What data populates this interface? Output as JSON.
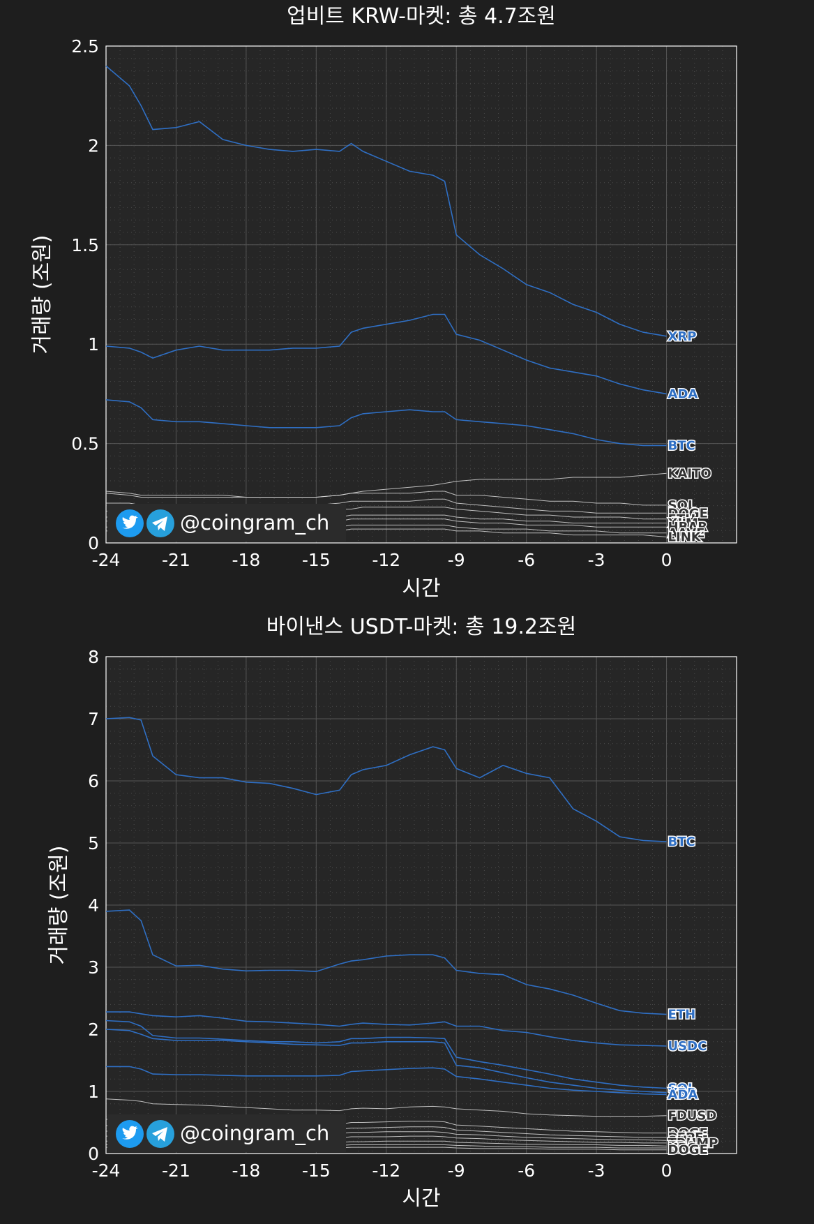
{
  "watermark": {
    "handle": "@coingram_ch",
    "icons": [
      "twitter-icon",
      "telegram-icon"
    ]
  },
  "colors": {
    "background": "#1e1e1e",
    "plot_bg": "#262626",
    "top_series": "#2f6fc4",
    "other_series": "#d9d9d9",
    "grid": "#555555",
    "text": "#ffffff",
    "watermark_bg": "#2b2b2b",
    "twitter": "#1d9bf0",
    "telegram": "#27a0dc"
  },
  "chart_data": [
    {
      "type": "line",
      "title": "업비트 KRW-마켓: 총 4.7조원",
      "xlabel": "시간",
      "ylabel": "거래량 (조원)",
      "xlim": [
        -24,
        3
      ],
      "ylim": [
        0,
        2.5
      ],
      "xticks": [
        "-24",
        "-21",
        "-18",
        "-15",
        "-12",
        "-9",
        "-6",
        "-3",
        "0"
      ],
      "xtick_values": [
        -24,
        -21,
        -18,
        -15,
        -12,
        -9,
        -6,
        -3,
        0
      ],
      "yticks": [
        "0",
        "0.5",
        "1",
        "1.5",
        "2",
        "2.5"
      ],
      "ytick_values": [
        0,
        0.5,
        1,
        1.5,
        2,
        2.5
      ],
      "grid": true,
      "x": [
        -24,
        -23,
        -22.5,
        -22,
        -21,
        -20,
        -19,
        -18,
        -17,
        -16,
        -15,
        -14,
        -13.5,
        -13,
        -12,
        -11,
        -10,
        -9.5,
        -9,
        -8,
        -7,
        -6,
        -5,
        -4,
        -3,
        -2,
        -1,
        0
      ],
      "series": [
        {
          "name": "XRP",
          "highlight": true,
          "values": [
            2.4,
            2.3,
            2.2,
            2.08,
            2.09,
            2.12,
            2.03,
            2.0,
            1.98,
            1.97,
            1.98,
            1.97,
            2.01,
            1.97,
            1.92,
            1.87,
            1.85,
            1.82,
            1.55,
            1.45,
            1.38,
            1.3,
            1.26,
            1.2,
            1.16,
            1.1,
            1.06,
            1.04
          ]
        },
        {
          "name": "ADA",
          "highlight": true,
          "values": [
            0.99,
            0.98,
            0.96,
            0.93,
            0.97,
            0.99,
            0.97,
            0.97,
            0.97,
            0.98,
            0.98,
            0.99,
            1.06,
            1.08,
            1.1,
            1.12,
            1.15,
            1.15,
            1.05,
            1.02,
            0.97,
            0.92,
            0.88,
            0.86,
            0.84,
            0.8,
            0.77,
            0.75
          ]
        },
        {
          "name": "BTC",
          "highlight": true,
          "values": [
            0.72,
            0.71,
            0.68,
            0.62,
            0.61,
            0.61,
            0.6,
            0.59,
            0.58,
            0.58,
            0.58,
            0.59,
            0.63,
            0.65,
            0.66,
            0.67,
            0.66,
            0.66,
            0.62,
            0.61,
            0.6,
            0.59,
            0.57,
            0.55,
            0.52,
            0.5,
            0.49,
            0.49
          ]
        },
        {
          "name": "KAITO",
          "highlight": false,
          "values": [
            0.26,
            0.25,
            0.24,
            0.24,
            0.24,
            0.24,
            0.24,
            0.23,
            0.23,
            0.23,
            0.23,
            0.24,
            0.25,
            0.26,
            0.27,
            0.28,
            0.29,
            0.3,
            0.31,
            0.32,
            0.32,
            0.32,
            0.32,
            0.33,
            0.33,
            0.33,
            0.34,
            0.35
          ]
        },
        {
          "name": "SOL",
          "highlight": false,
          "values": [
            0.25,
            0.24,
            0.23,
            0.23,
            0.23,
            0.23,
            0.23,
            0.23,
            0.23,
            0.23,
            0.23,
            0.24,
            0.25,
            0.25,
            0.25,
            0.25,
            0.26,
            0.26,
            0.24,
            0.24,
            0.23,
            0.22,
            0.21,
            0.21,
            0.2,
            0.2,
            0.19,
            0.19
          ]
        },
        {
          "name": "DOGE",
          "highlight": false,
          "values": [
            0.2,
            0.2,
            0.19,
            0.19,
            0.19,
            0.19,
            0.19,
            0.19,
            0.19,
            0.19,
            0.19,
            0.2,
            0.21,
            0.21,
            0.21,
            0.21,
            0.22,
            0.22,
            0.2,
            0.19,
            0.18,
            0.17,
            0.16,
            0.16,
            0.15,
            0.15,
            0.15,
            0.15
          ]
        },
        {
          "name": "ETH",
          "highlight": false,
          "values": [
            0.16,
            0.16,
            0.16,
            0.16,
            0.16,
            0.16,
            0.16,
            0.16,
            0.16,
            0.16,
            0.16,
            0.17,
            0.17,
            0.18,
            0.18,
            0.18,
            0.18,
            0.18,
            0.17,
            0.16,
            0.15,
            0.14,
            0.14,
            0.13,
            0.13,
            0.13,
            0.12,
            0.12
          ]
        },
        {
          "name": "XLM",
          "highlight": false,
          "values": [
            0.13,
            0.13,
            0.13,
            0.13,
            0.13,
            0.13,
            0.13,
            0.13,
            0.13,
            0.13,
            0.13,
            0.13,
            0.14,
            0.14,
            0.14,
            0.14,
            0.14,
            0.14,
            0.13,
            0.12,
            0.12,
            0.11,
            0.11,
            0.1,
            0.1,
            0.1,
            0.1,
            0.1
          ]
        },
        {
          "name": "HBAR",
          "highlight": false,
          "values": [
            0.11,
            0.11,
            0.11,
            0.11,
            0.11,
            0.11,
            0.11,
            0.11,
            0.11,
            0.11,
            0.11,
            0.11,
            0.12,
            0.12,
            0.12,
            0.12,
            0.12,
            0.12,
            0.11,
            0.1,
            0.1,
            0.09,
            0.09,
            0.09,
            0.08,
            0.08,
            0.08,
            0.08
          ]
        },
        {
          "name": "AAVE",
          "highlight": false,
          "values": [
            0.08,
            0.08,
            0.08,
            0.08,
            0.08,
            0.08,
            0.08,
            0.08,
            0.08,
            0.08,
            0.08,
            0.08,
            0.09,
            0.09,
            0.09,
            0.09,
            0.09,
            0.09,
            0.08,
            0.07,
            0.07,
            0.07,
            0.06,
            0.06,
            0.06,
            0.05,
            0.05,
            0.05
          ]
        },
        {
          "name": "LINK",
          "highlight": false,
          "values": [
            0.06,
            0.06,
            0.06,
            0.06,
            0.06,
            0.06,
            0.06,
            0.06,
            0.06,
            0.06,
            0.06,
            0.06,
            0.07,
            0.07,
            0.07,
            0.07,
            0.07,
            0.07,
            0.06,
            0.06,
            0.05,
            0.05,
            0.05,
            0.04,
            0.04,
            0.04,
            0.04,
            0.03
          ]
        }
      ]
    },
    {
      "type": "line",
      "title": "바이낸스 USDT-마켓: 총 19.2조원",
      "xlabel": "시간",
      "ylabel": "거래량 (조원)",
      "xlim": [
        -24,
        3
      ],
      "ylim": [
        0,
        8
      ],
      "xticks": [
        "-24",
        "-21",
        "-18",
        "-15",
        "-12",
        "-9",
        "-6",
        "-3",
        "0"
      ],
      "xtick_values": [
        -24,
        -21,
        -18,
        -15,
        -12,
        -9,
        -6,
        -3,
        0
      ],
      "yticks": [
        "0",
        "1",
        "2",
        "3",
        "4",
        "5",
        "6",
        "7",
        "8"
      ],
      "ytick_values": [
        0,
        1,
        2,
        3,
        4,
        5,
        6,
        7,
        8
      ],
      "grid": true,
      "x": [
        -24,
        -23,
        -22.5,
        -22,
        -21,
        -20,
        -19,
        -18,
        -17,
        -16,
        -15,
        -14,
        -13.5,
        -13,
        -12,
        -11,
        -10,
        -9.5,
        -9,
        -8,
        -7,
        -6,
        -5,
        -4,
        -3,
        -2,
        -1,
        0
      ],
      "series": [
        {
          "name": "BTC",
          "highlight": true,
          "values": [
            7.0,
            7.02,
            6.98,
            6.4,
            6.1,
            6.05,
            6.05,
            5.98,
            5.96,
            5.88,
            5.78,
            5.85,
            6.1,
            6.18,
            6.25,
            6.42,
            6.55,
            6.5,
            6.2,
            6.05,
            6.25,
            6.12,
            6.05,
            5.55,
            5.35,
            5.1,
            5.04,
            5.02
          ]
        },
        {
          "name": "ETH",
          "highlight": true,
          "values": [
            3.9,
            3.92,
            3.75,
            3.2,
            3.02,
            3.03,
            2.97,
            2.94,
            2.95,
            2.95,
            2.93,
            3.05,
            3.1,
            3.12,
            3.18,
            3.2,
            3.2,
            3.15,
            2.95,
            2.9,
            2.88,
            2.72,
            2.65,
            2.55,
            2.42,
            2.3,
            2.26,
            2.24
          ]
        },
        {
          "name": "USDC",
          "highlight": true,
          "values": [
            2.28,
            2.28,
            2.25,
            2.22,
            2.2,
            2.22,
            2.18,
            2.13,
            2.12,
            2.1,
            2.08,
            2.05,
            2.08,
            2.1,
            2.08,
            2.07,
            2.1,
            2.12,
            2.05,
            2.05,
            1.98,
            1.95,
            1.88,
            1.82,
            1.78,
            1.75,
            1.74,
            1.73
          ]
        },
        {
          "name": "SOL",
          "highlight": true,
          "values": [
            2.14,
            2.12,
            2.05,
            1.9,
            1.86,
            1.86,
            1.84,
            1.82,
            1.8,
            1.8,
            1.78,
            1.8,
            1.85,
            1.85,
            1.87,
            1.87,
            1.86,
            1.85,
            1.55,
            1.48,
            1.42,
            1.35,
            1.28,
            1.2,
            1.15,
            1.1,
            1.07,
            1.05
          ]
        },
        {
          "name": "XRP",
          "highlight": true,
          "values": [
            2.0,
            1.98,
            1.92,
            1.85,
            1.82,
            1.82,
            1.82,
            1.8,
            1.78,
            1.76,
            1.75,
            1.74,
            1.78,
            1.78,
            1.8,
            1.8,
            1.8,
            1.78,
            1.42,
            1.38,
            1.3,
            1.22,
            1.15,
            1.1,
            1.05,
            1.02,
            1.0,
            0.98
          ]
        },
        {
          "name": "ADA",
          "highlight": true,
          "values": [
            1.4,
            1.4,
            1.36,
            1.28,
            1.27,
            1.27,
            1.26,
            1.25,
            1.25,
            1.25,
            1.25,
            1.26,
            1.32,
            1.33,
            1.35,
            1.37,
            1.38,
            1.36,
            1.24,
            1.2,
            1.15,
            1.1,
            1.05,
            1.02,
            1.0,
            0.98,
            0.96,
            0.95
          ]
        },
        {
          "name": "FDUSD",
          "highlight": false,
          "values": [
            0.88,
            0.86,
            0.84,
            0.8,
            0.79,
            0.78,
            0.76,
            0.74,
            0.72,
            0.7,
            0.7,
            0.69,
            0.72,
            0.73,
            0.72,
            0.75,
            0.76,
            0.75,
            0.72,
            0.7,
            0.68,
            0.64,
            0.62,
            0.61,
            0.6,
            0.6,
            0.6,
            0.61
          ]
        },
        {
          "name": "DOGE",
          "highlight": false,
          "values": [
            0.55,
            0.55,
            0.53,
            0.5,
            0.49,
            0.49,
            0.48,
            0.47,
            0.47,
            0.47,
            0.46,
            0.47,
            0.5,
            0.5,
            0.51,
            0.52,
            0.52,
            0.51,
            0.46,
            0.44,
            0.42,
            0.4,
            0.38,
            0.36,
            0.35,
            0.34,
            0.33,
            0.33
          ]
        },
        {
          "name": "PEPE",
          "highlight": false,
          "values": [
            0.45,
            0.45,
            0.43,
            0.41,
            0.4,
            0.4,
            0.39,
            0.39,
            0.39,
            0.38,
            0.38,
            0.39,
            0.41,
            0.41,
            0.42,
            0.43,
            0.43,
            0.42,
            0.38,
            0.36,
            0.34,
            0.32,
            0.3,
            0.29,
            0.28,
            0.27,
            0.26,
            0.26
          ]
        },
        {
          "name": "SUI",
          "highlight": false,
          "values": [
            0.36,
            0.36,
            0.35,
            0.33,
            0.33,
            0.33,
            0.32,
            0.32,
            0.32,
            0.32,
            0.31,
            0.32,
            0.34,
            0.34,
            0.35,
            0.35,
            0.35,
            0.34,
            0.31,
            0.3,
            0.28,
            0.26,
            0.25,
            0.24,
            0.23,
            0.22,
            0.22,
            0.21
          ]
        },
        {
          "name": "TRUMP",
          "highlight": false,
          "values": [
            0.28,
            0.28,
            0.27,
            0.26,
            0.26,
            0.26,
            0.25,
            0.25,
            0.25,
            0.25,
            0.25,
            0.25,
            0.27,
            0.27,
            0.27,
            0.28,
            0.28,
            0.27,
            0.25,
            0.24,
            0.22,
            0.21,
            0.2,
            0.19,
            0.18,
            0.18,
            0.17,
            0.17
          ]
        },
        {
          "name": "ERA",
          "highlight": false,
          "values": [
            0.2,
            0.2,
            0.2,
            0.19,
            0.19,
            0.19,
            0.19,
            0.18,
            0.18,
            0.18,
            0.18,
            0.18,
            0.19,
            0.19,
            0.2,
            0.2,
            0.2,
            0.2,
            0.18,
            0.17,
            0.16,
            0.15,
            0.15,
            0.14,
            0.14,
            0.13,
            0.13,
            0.12
          ]
        },
        {
          "name": "URS",
          "highlight": false,
          "values": [
            0.14,
            0.14,
            0.14,
            0.13,
            0.13,
            0.13,
            0.13,
            0.13,
            0.13,
            0.13,
            0.13,
            0.13,
            0.14,
            0.14,
            0.14,
            0.14,
            0.14,
            0.14,
            0.13,
            0.12,
            0.11,
            0.11,
            0.1,
            0.1,
            0.1,
            0.09,
            0.09,
            0.09
          ]
        },
        {
          "name": "DOGE",
          "highlight": false,
          "values": [
            0.1,
            0.1,
            0.1,
            0.09,
            0.09,
            0.09,
            0.09,
            0.09,
            0.09,
            0.09,
            0.09,
            0.09,
            0.1,
            0.1,
            0.1,
            0.1,
            0.1,
            0.1,
            0.09,
            0.08,
            0.08,
            0.08,
            0.07,
            0.07,
            0.07,
            0.06,
            0.06,
            0.06
          ]
        }
      ]
    }
  ]
}
